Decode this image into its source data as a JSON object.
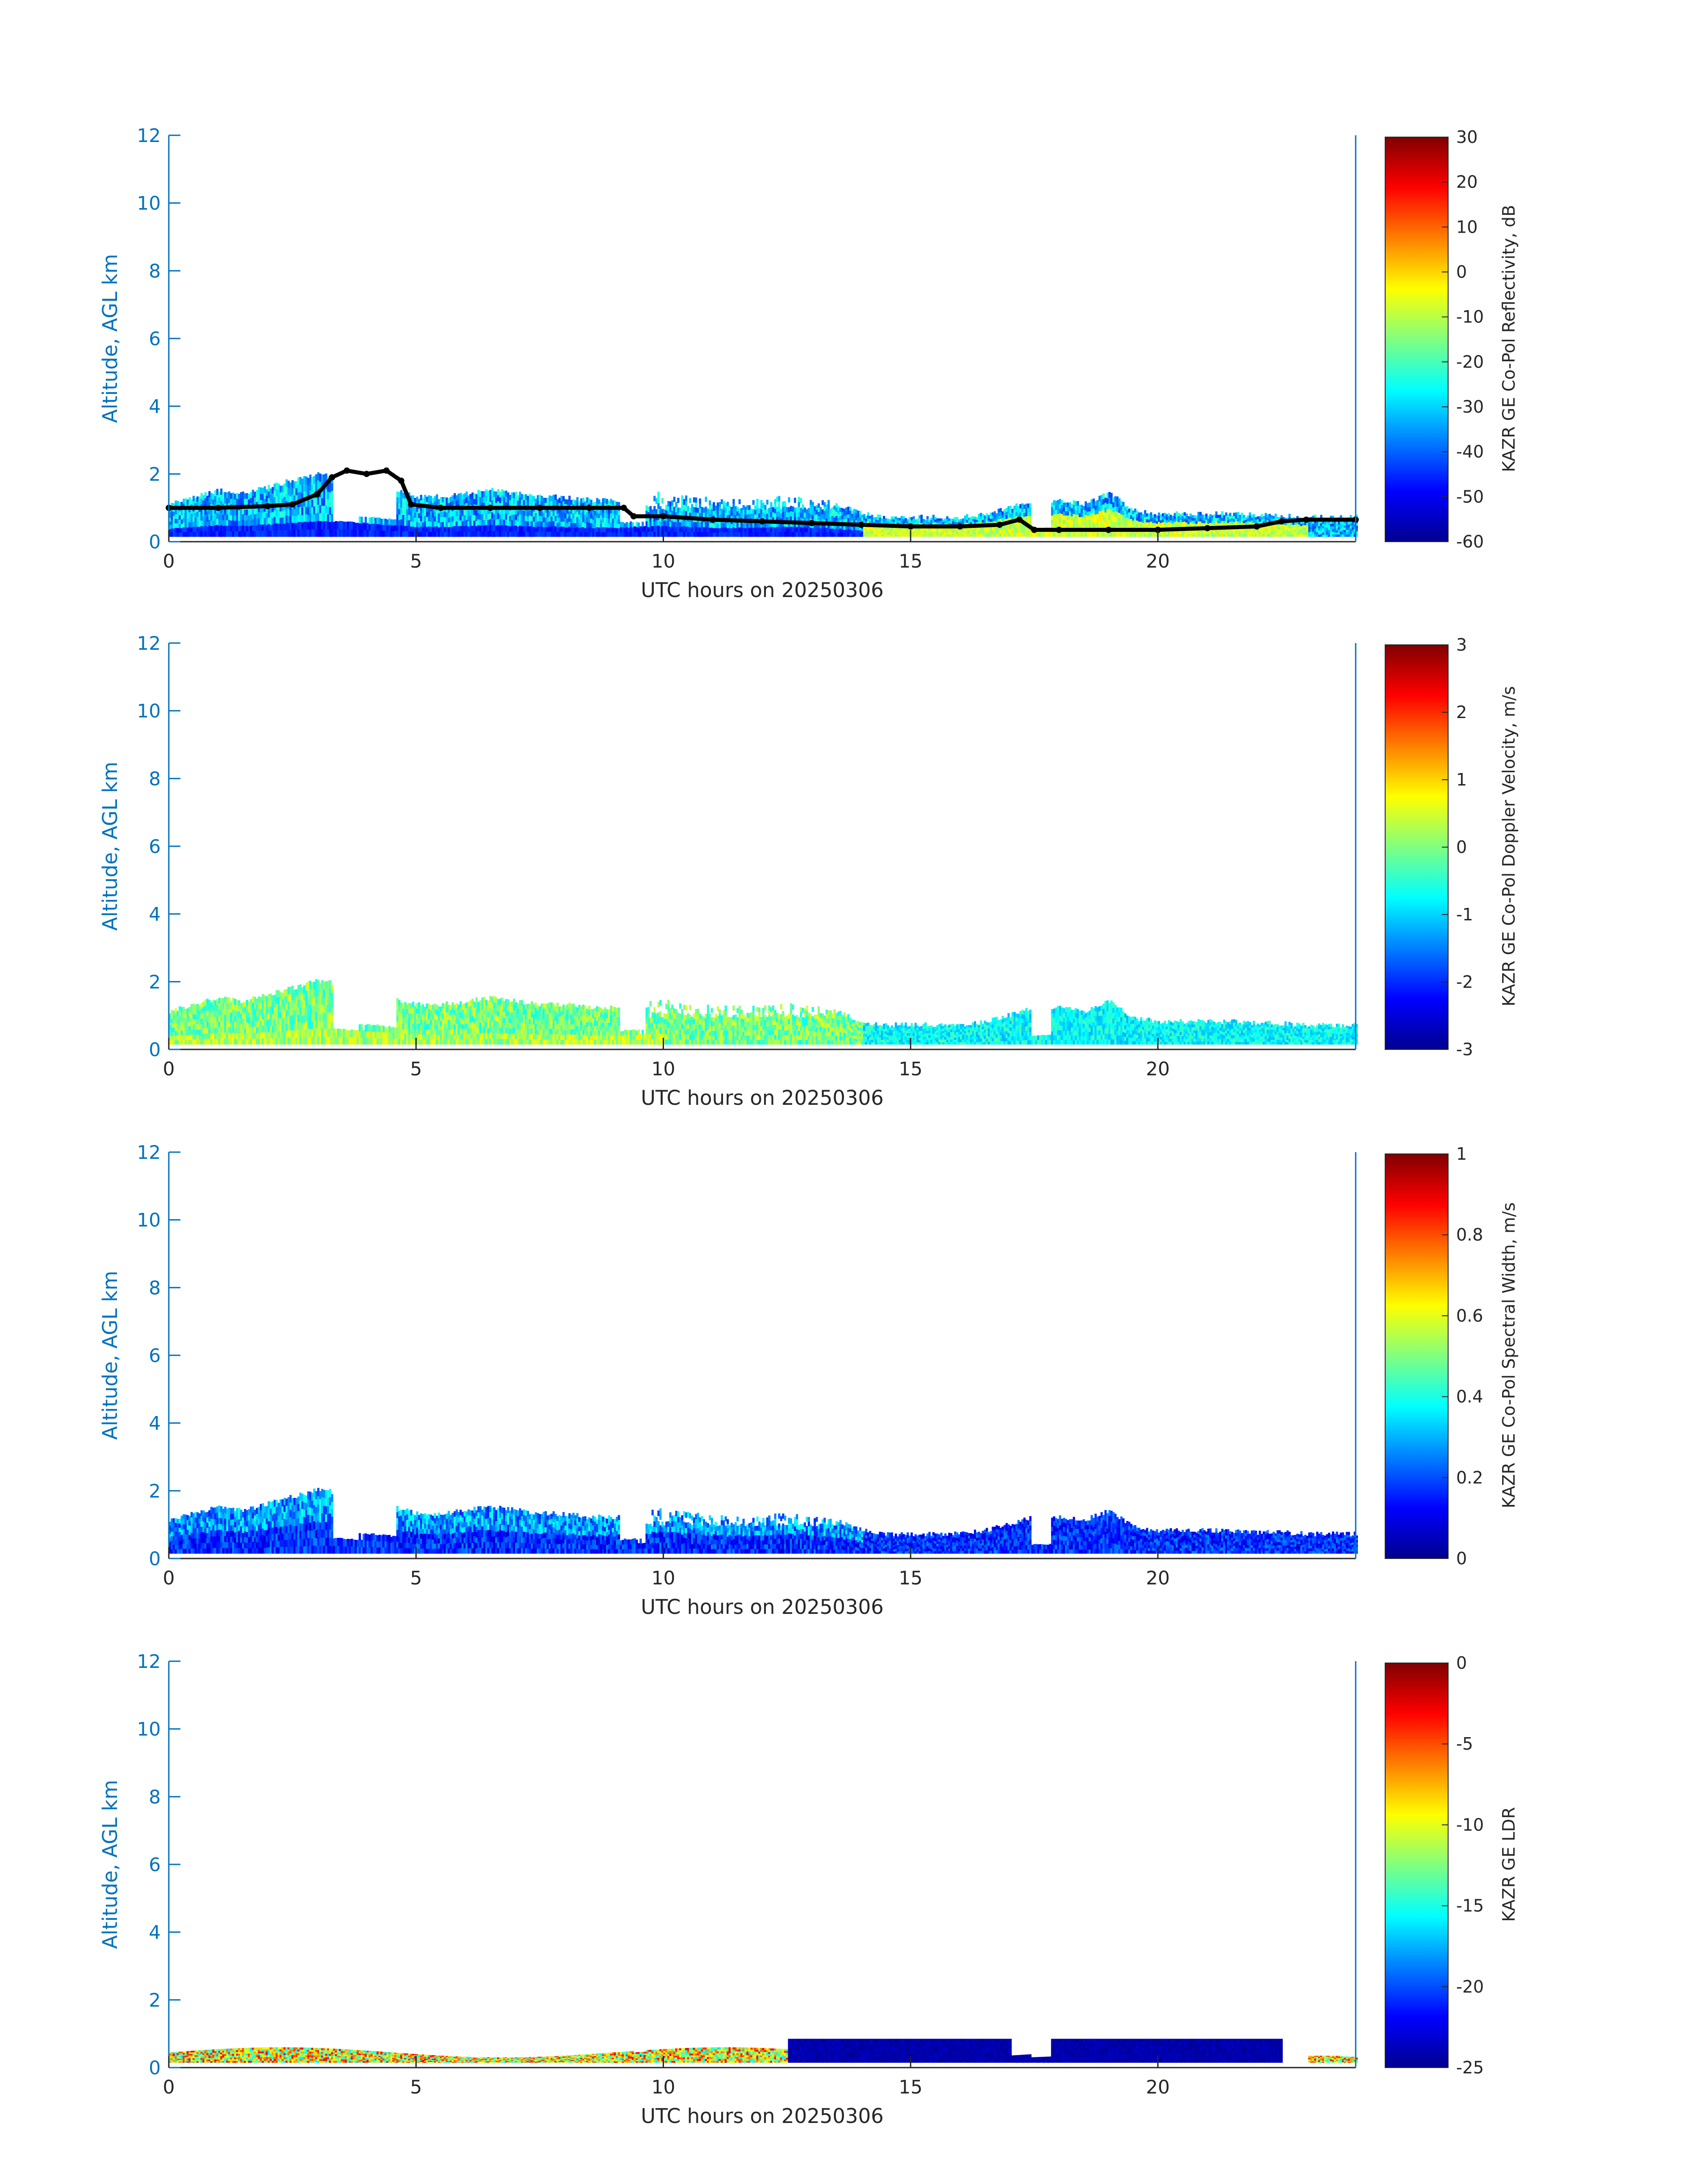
{
  "figure": {
    "background": "#ffffff",
    "axis_color": "#0072bd",
    "text_color": "#262626",
    "mask_color": "#000000"
  },
  "chart_data": [
    {
      "type": "heatmap",
      "xlabel": "UTC hours on 20250306",
      "ylabel": "Altitude, AGL km",
      "xlim": [
        0,
        24
      ],
      "ylim": [
        0,
        12
      ],
      "xticks": [
        "0",
        "5",
        "10",
        "15",
        "20"
      ],
      "yticks": [
        "0",
        "2",
        "4",
        "6",
        "8",
        "10",
        "12"
      ],
      "colorbar": {
        "label": "KAZR GE Co-Pol Reflectivity, dB",
        "range": [
          -60,
          30
        ],
        "ticks": [
          "30",
          "20",
          "10",
          "0",
          "-10",
          "-20",
          "-30",
          "-40",
          "-50",
          "-60"
        ],
        "colormap": "jet"
      },
      "echo_top_km": [
        [
          0,
          1.2
        ],
        [
          0.5,
          1.4
        ],
        [
          1,
          1.6
        ],
        [
          1.5,
          1.5
        ],
        [
          2,
          1.7
        ],
        [
          2.5,
          1.9
        ],
        [
          3,
          2.1
        ],
        [
          3.5,
          2.0
        ],
        [
          4,
          1.8
        ],
        [
          4.5,
          1.6
        ],
        [
          5,
          1.4
        ],
        [
          5.5,
          1.4
        ],
        [
          6,
          1.5
        ],
        [
          6.5,
          1.6
        ],
        [
          7,
          1.5
        ],
        [
          7.5,
          1.4
        ],
        [
          8,
          1.4
        ],
        [
          8.5,
          1.3
        ],
        [
          9,
          1.3
        ],
        [
          9.5,
          1.4
        ],
        [
          10,
          1.5
        ],
        [
          10.5,
          1.4
        ],
        [
          11,
          1.3
        ],
        [
          11.5,
          1.3
        ],
        [
          12,
          1.3
        ],
        [
          12.5,
          1.4
        ],
        [
          13,
          1.3
        ],
        [
          13.5,
          1.2
        ],
        [
          14,
          0.9
        ],
        [
          14.5,
          0.8
        ],
        [
          15,
          0.8
        ],
        [
          15.5,
          0.8
        ],
        [
          16,
          0.8
        ],
        [
          16.5,
          0.9
        ],
        [
          17,
          1.1
        ],
        [
          17.5,
          1.3
        ],
        [
          18,
          1.3
        ],
        [
          18.5,
          1.2
        ],
        [
          19,
          1.5
        ],
        [
          19.5,
          1.0
        ],
        [
          20,
          0.9
        ],
        [
          20.5,
          0.9
        ],
        [
          21,
          0.9
        ],
        [
          21.5,
          0.9
        ],
        [
          22,
          0.85
        ],
        [
          22.5,
          0.85
        ],
        [
          23,
          0.8
        ],
        [
          23.5,
          0.8
        ],
        [
          24,
          0.8
        ]
      ],
      "echo_base_km": [
        [
          0,
          0.15
        ],
        [
          24,
          0.15
        ]
      ],
      "cloud_base_points_km": [
        [
          0,
          1.0
        ],
        [
          1,
          1.0
        ],
        [
          2,
          1.05
        ],
        [
          2.5,
          1.1
        ],
        [
          3.0,
          1.4
        ],
        [
          3.3,
          1.9
        ],
        [
          3.6,
          2.1
        ],
        [
          4.0,
          2.0
        ],
        [
          4.4,
          2.1
        ],
        [
          4.7,
          1.8
        ],
        [
          4.9,
          1.1
        ],
        [
          5.5,
          1.0
        ],
        [
          6.5,
          1.0
        ],
        [
          7.5,
          1.0
        ],
        [
          8.5,
          1.0
        ],
        [
          9.2,
          1.0
        ],
        [
          9.4,
          0.75
        ],
        [
          10,
          0.75
        ],
        [
          11,
          0.65
        ],
        [
          12,
          0.6
        ],
        [
          13,
          0.55
        ],
        [
          14,
          0.5
        ],
        [
          15,
          0.45
        ],
        [
          16,
          0.45
        ],
        [
          16.8,
          0.5
        ],
        [
          17.2,
          0.65
        ],
        [
          17.5,
          0.35
        ],
        [
          18,
          0.35
        ],
        [
          19,
          0.35
        ],
        [
          20,
          0.35
        ],
        [
          21,
          0.4
        ],
        [
          22,
          0.45
        ],
        [
          22.5,
          0.6
        ],
        [
          23,
          0.65
        ],
        [
          24,
          0.65
        ]
      ]
    },
    {
      "type": "heatmap",
      "xlabel": "UTC hours on 20250306",
      "ylabel": "Altitude, AGL km",
      "xlim": [
        0,
        24
      ],
      "ylim": [
        0,
        12
      ],
      "xticks": [
        "0",
        "5",
        "10",
        "15",
        "20"
      ],
      "yticks": [
        "0",
        "2",
        "4",
        "6",
        "8",
        "10",
        "12"
      ],
      "colorbar": {
        "label": "KAZR GE Co-Pol Doppler Velocity, m/s",
        "range": [
          -3,
          3
        ],
        "ticks": [
          "3",
          "2",
          "1",
          "0",
          "-1",
          "-2",
          "-3"
        ],
        "colormap": "jet"
      }
    },
    {
      "type": "heatmap",
      "xlabel": "UTC hours on 20250306",
      "ylabel": "Altitude, AGL km",
      "xlim": [
        0,
        24
      ],
      "ylim": [
        0,
        12
      ],
      "xticks": [
        "0",
        "5",
        "10",
        "15",
        "20"
      ],
      "yticks": [
        "0",
        "2",
        "4",
        "6",
        "8",
        "10",
        "12"
      ],
      "colorbar": {
        "label": "KAZR GE Co-Pol Spectral Width, m/s",
        "range": [
          0,
          1
        ],
        "ticks": [
          "1",
          "0.8",
          "0.6",
          "0.4",
          "0.2",
          "0"
        ],
        "colormap": "jet"
      }
    },
    {
      "type": "heatmap",
      "xlabel": "UTC hours on 20250306",
      "ylabel": "Altitude, AGL km",
      "xlim": [
        0,
        24
      ],
      "ylim": [
        0,
        12
      ],
      "xticks": [
        "0",
        "5",
        "10",
        "15",
        "20"
      ],
      "yticks": [
        "0",
        "2",
        "4",
        "6",
        "8",
        "10",
        "12"
      ],
      "colorbar": {
        "label": "KAZR GE LDR",
        "range": [
          -25,
          0
        ],
        "ticks": [
          "0",
          "-5",
          "-10",
          "-15",
          "-20",
          "-25"
        ],
        "colormap": "jet"
      }
    }
  ]
}
